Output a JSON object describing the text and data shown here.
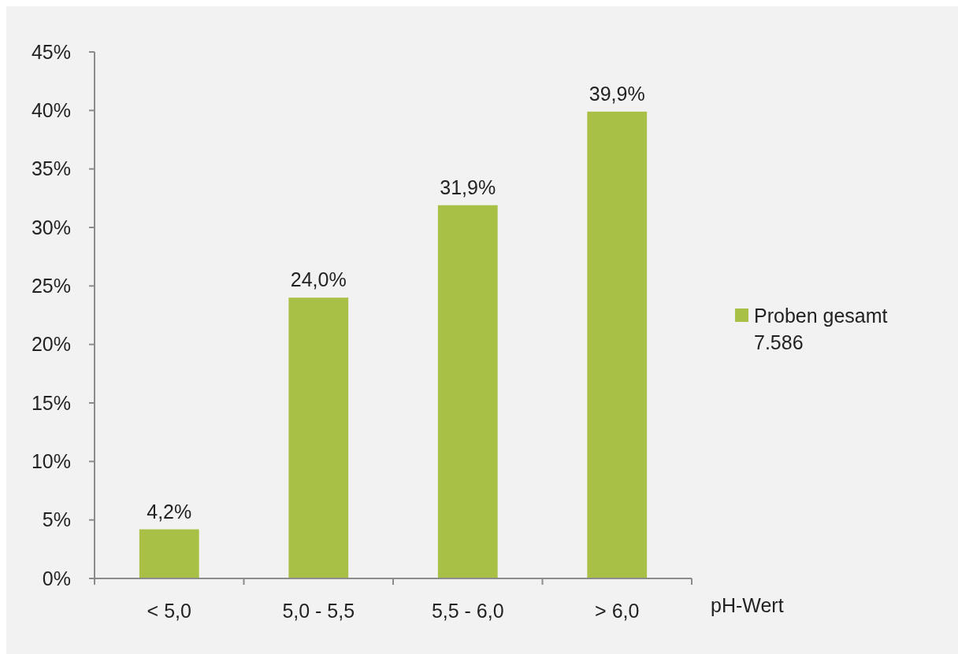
{
  "chart_data": {
    "type": "bar",
    "xlabel": "pH-Wert",
    "categories": [
      "< 5,0",
      "5,0 - 5,5",
      "5,5 - 6,0",
      "> 6,0"
    ],
    "series": [
      {
        "name": "Proben gesamt\n7.586",
        "color": "#a9c046",
        "values": [
          4.2,
          24.0,
          31.9,
          39.9
        ],
        "value_labels": [
          "4,2%",
          "24,0%",
          "31,9%",
          "39,9%"
        ]
      }
    ],
    "ylim": [
      0,
      45
    ],
    "yticks": [
      {
        "value": 0,
        "label": "0%"
      },
      {
        "value": 5,
        "label": "5%"
      },
      {
        "value": 10,
        "label": "10%"
      },
      {
        "value": 15,
        "label": "15%"
      },
      {
        "value": 20,
        "label": "20%"
      },
      {
        "value": 25,
        "label": "25%"
      },
      {
        "value": 30,
        "label": "30%"
      },
      {
        "value": 35,
        "label": "35%"
      },
      {
        "value": 40,
        "label": "40%"
      },
      {
        "value": 45,
        "label": "45%"
      }
    ],
    "grid": false,
    "legend": "right"
  }
}
